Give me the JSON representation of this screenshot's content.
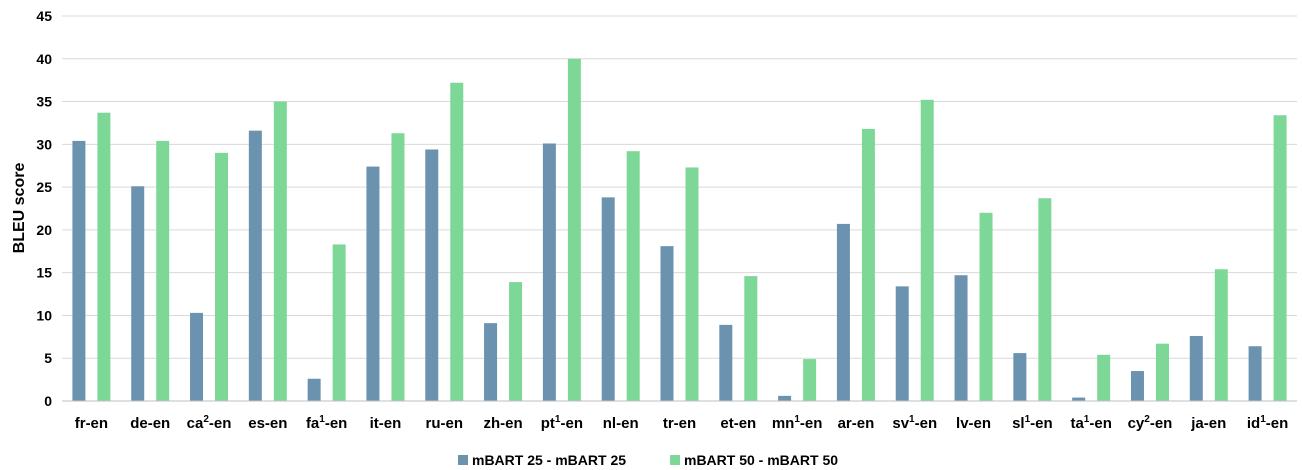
{
  "chart_data": {
    "type": "bar",
    "ylabel": "BLEU score",
    "ylim": [
      0,
      45
    ],
    "yticks": [
      0,
      5,
      10,
      15,
      20,
      25,
      30,
      35,
      40,
      45
    ],
    "grid": true,
    "legend_position": "bottom",
    "categories": [
      {
        "base": "fr",
        "sup": "",
        "suffix": "-en"
      },
      {
        "base": "de",
        "sup": "",
        "suffix": "-en"
      },
      {
        "base": "ca",
        "sup": "2",
        "suffix": "-en"
      },
      {
        "base": "es",
        "sup": "",
        "suffix": "-en"
      },
      {
        "base": "fa",
        "sup": "1",
        "suffix": "-en"
      },
      {
        "base": "it",
        "sup": "",
        "suffix": "-en"
      },
      {
        "base": "ru",
        "sup": "",
        "suffix": "-en"
      },
      {
        "base": "zh",
        "sup": "",
        "suffix": "-en"
      },
      {
        "base": "pt",
        "sup": "1",
        "suffix": "-en"
      },
      {
        "base": "nl",
        "sup": "",
        "suffix": "-en"
      },
      {
        "base": "tr",
        "sup": "",
        "suffix": "-en"
      },
      {
        "base": "et",
        "sup": "",
        "suffix": "-en"
      },
      {
        "base": "mn",
        "sup": "1",
        "suffix": "-en"
      },
      {
        "base": "ar",
        "sup": "",
        "suffix": "-en"
      },
      {
        "base": "sv",
        "sup": "1",
        "suffix": "-en"
      },
      {
        "base": "lv",
        "sup": "",
        "suffix": "-en"
      },
      {
        "base": "sl",
        "sup": "1",
        "suffix": "-en"
      },
      {
        "base": "ta",
        "sup": "1",
        "suffix": "-en"
      },
      {
        "base": "cy",
        "sup": "2",
        "suffix": "-en"
      },
      {
        "base": "ja",
        "sup": "",
        "suffix": "-en"
      },
      {
        "base": "id",
        "sup": "1",
        "suffix": "-en"
      }
    ],
    "series": [
      {
        "name": "mBART 25 - mBART 25",
        "color": "#6b93b0",
        "values": [
          30.4,
          25.1,
          10.3,
          31.6,
          2.6,
          27.4,
          29.4,
          9.1,
          30.1,
          23.8,
          18.1,
          8.9,
          0.6,
          20.7,
          13.4,
          14.7,
          5.6,
          0.4,
          3.5,
          7.6,
          6.4
        ]
      },
      {
        "name": "mBART 50 - mBART 50",
        "color": "#7dd898",
        "values": [
          33.7,
          30.4,
          29.0,
          35.0,
          18.3,
          31.3,
          37.2,
          13.9,
          40.0,
          29.2,
          27.3,
          14.6,
          4.9,
          31.8,
          35.2,
          22.0,
          23.7,
          5.4,
          6.7,
          15.4,
          33.4
        ]
      }
    ]
  }
}
